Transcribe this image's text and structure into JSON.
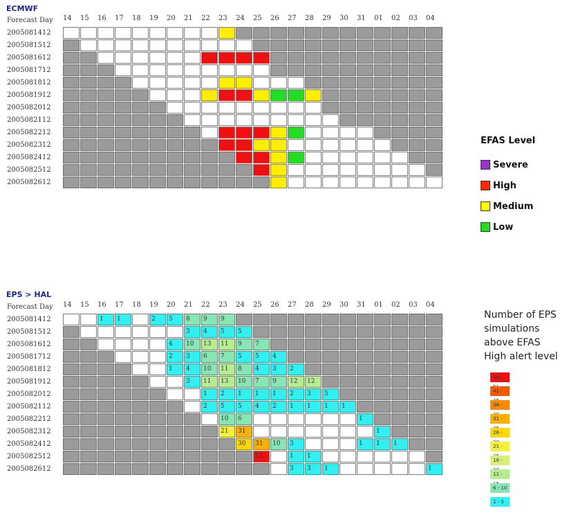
{
  "ecmwf": {
    "title": "ECMWF",
    "header_label": "Forecast Day",
    "days": [
      "14",
      "15",
      "16",
      "17",
      "18",
      "19",
      "20",
      "21",
      "22",
      "23",
      "24",
      "25",
      "26",
      "27",
      "28",
      "29",
      "30",
      "31",
      "01",
      "02",
      "03",
      "04"
    ],
    "rows": [
      {
        "label": "2005081412",
        "cells": [
          "w",
          "w",
          "w",
          "w",
          "w",
          "w",
          "w",
          "w",
          "w",
          "y",
          "g",
          "g",
          "g",
          "g",
          "g",
          "g",
          "g",
          "g",
          "g",
          "g",
          "g",
          "g"
        ]
      },
      {
        "label": "2005081512",
        "cells": [
          "g",
          "w",
          "w",
          "w",
          "w",
          "w",
          "w",
          "w",
          "w",
          "w",
          "w",
          "g",
          "g",
          "g",
          "g",
          "g",
          "g",
          "g",
          "g",
          "g",
          "g",
          "g"
        ]
      },
      {
        "label": "2005081612",
        "cells": [
          "g",
          "g",
          "w",
          "w",
          "w",
          "w",
          "w",
          "w",
          "r",
          "r",
          "r",
          "r",
          "g",
          "g",
          "g",
          "g",
          "g",
          "g",
          "g",
          "g",
          "g",
          "g"
        ]
      },
      {
        "label": "2005081712",
        "cells": [
          "g",
          "g",
          "g",
          "w",
          "w",
          "w",
          "w",
          "w",
          "w",
          "w",
          "w",
          "w",
          "g",
          "g",
          "g",
          "g",
          "g",
          "g",
          "g",
          "g",
          "g",
          "g"
        ]
      },
      {
        "label": "2005081812",
        "cells": [
          "g",
          "g",
          "g",
          "g",
          "w",
          "w",
          "w",
          "w",
          "w",
          "y",
          "y",
          "w",
          "w",
          "w",
          "g",
          "g",
          "g",
          "g",
          "g",
          "g",
          "g",
          "g"
        ]
      },
      {
        "label": "2005081912",
        "cells": [
          "g",
          "g",
          "g",
          "g",
          "g",
          "w",
          "w",
          "w",
          "y",
          "r",
          "r",
          "y",
          "l",
          "l",
          "y",
          "g",
          "g",
          "g",
          "g",
          "g",
          "g",
          "g"
        ]
      },
      {
        "label": "2005082012",
        "cells": [
          "g",
          "g",
          "g",
          "g",
          "g",
          "g",
          "w",
          "w",
          "w",
          "w",
          "w",
          "w",
          "w",
          "w",
          "w",
          "g",
          "g",
          "g",
          "g",
          "g",
          "g",
          "g"
        ]
      },
      {
        "label": "2005082112",
        "cells": [
          "g",
          "g",
          "g",
          "g",
          "g",
          "g",
          "g",
          "w",
          "w",
          "w",
          "w",
          "w",
          "w",
          "w",
          "w",
          "w",
          "g",
          "g",
          "g",
          "g",
          "g",
          "g"
        ]
      },
      {
        "label": "2005082212",
        "cells": [
          "g",
          "g",
          "g",
          "g",
          "g",
          "g",
          "g",
          "g",
          "w",
          "r",
          "r",
          "r",
          "y",
          "l",
          "w",
          "w",
          "w",
          "w",
          "g",
          "g",
          "g",
          "g"
        ]
      },
      {
        "label": "2005082312",
        "cells": [
          "g",
          "g",
          "g",
          "g",
          "g",
          "g",
          "g",
          "g",
          "g",
          "r",
          "r",
          "y",
          "y",
          "w",
          "w",
          "w",
          "w",
          "w",
          "w",
          "g",
          "g",
          "g"
        ]
      },
      {
        "label": "2005082412",
        "cells": [
          "g",
          "g",
          "g",
          "g",
          "g",
          "g",
          "g",
          "g",
          "g",
          "g",
          "r",
          "r",
          "y",
          "l",
          "w",
          "w",
          "w",
          "w",
          "w",
          "w",
          "g",
          "g"
        ]
      },
      {
        "label": "2005082512",
        "cells": [
          "g",
          "g",
          "g",
          "g",
          "g",
          "g",
          "g",
          "g",
          "g",
          "g",
          "g",
          "r",
          "y",
          "w",
          "w",
          "w",
          "w",
          "w",
          "w",
          "w",
          "w",
          "g"
        ]
      },
      {
        "label": "2005082612",
        "cells": [
          "g",
          "g",
          "g",
          "g",
          "g",
          "g",
          "g",
          "g",
          "g",
          "g",
          "g",
          "g",
          "y",
          "w",
          "w",
          "w",
          "w",
          "w",
          "w",
          "w",
          "w",
          "w"
        ]
      }
    ],
    "legend": {
      "title": "EFAS Level",
      "items": [
        {
          "label": "Severe",
          "color": "#9933cc"
        },
        {
          "label": "High",
          "color": "#ff2a00"
        },
        {
          "label": "Medium",
          "color": "#ffff00"
        },
        {
          "label": "Low",
          "color": "#22dd22"
        }
      ]
    },
    "colors": {
      "w": "#ffffff",
      "g": "#9b9b9b",
      "r": "#ee1111",
      "y": "#ffee00",
      "l": "#22dd22"
    }
  },
  "eps": {
    "title": "EPS > HAL",
    "header_label": "Forecast Day",
    "days": [
      "14",
      "15",
      "16",
      "17",
      "18",
      "19",
      "20",
      "21",
      "22",
      "23",
      "24",
      "25",
      "26",
      "27",
      "28",
      "29",
      "30",
      "31",
      "01",
      "02",
      "03",
      "04"
    ],
    "rows": [
      {
        "label": "2005081412",
        "cells": [
          "",
          "",
          "1",
          "1",
          "",
          "2",
          "5",
          "8",
          "9",
          "9",
          "",
          "",
          "",
          "",
          "",
          "",
          "",
          "",
          "",
          "",
          "",
          ""
        ]
      },
      {
        "label": "2005081512",
        "cells": [
          "",
          "",
          "",
          "",
          "",
          "",
          "",
          "3",
          "4",
          "5",
          "5",
          "",
          "",
          "",
          "",
          "",
          "",
          "",
          "",
          "",
          "",
          ""
        ]
      },
      {
        "label": "2005081612",
        "cells": [
          "",
          "",
          "",
          "",
          "",
          "",
          "4",
          "10",
          "13",
          "11",
          "9",
          "7",
          "",
          "",
          "",
          "",
          "",
          "",
          "",
          "",
          "",
          ""
        ]
      },
      {
        "label": "2005081712",
        "cells": [
          "",
          "",
          "",
          "",
          "",
          "",
          "2",
          "3",
          "6",
          "7",
          "5",
          "5",
          "4",
          "",
          "",
          "",
          "",
          "",
          "",
          "",
          "",
          ""
        ]
      },
      {
        "label": "2005081812",
        "cells": [
          "",
          "",
          "",
          "",
          "",
          "",
          "1",
          "4",
          "10",
          "11",
          "8",
          "4",
          "3",
          "2",
          "",
          "",
          "",
          "",
          "",
          "",
          "",
          ""
        ]
      },
      {
        "label": "2005081912",
        "cells": [
          "",
          "",
          "",
          "",
          "",
          "",
          "",
          "3",
          "11",
          "13",
          "10",
          "7",
          "9",
          "12",
          "12",
          "",
          "",
          "",
          "",
          "",
          "",
          ""
        ]
      },
      {
        "label": "2005082012",
        "cells": [
          "",
          "",
          "",
          "",
          "",
          "",
          "",
          "",
          "1",
          "2",
          "1",
          "1",
          "1",
          "2",
          "3",
          "5",
          "",
          "",
          "",
          "",
          "",
          ""
        ]
      },
      {
        "label": "2005082112",
        "cells": [
          "",
          "",
          "",
          "",
          "",
          "",
          "",
          "",
          "2",
          "5",
          "5",
          "4",
          "2",
          "1",
          "1",
          "1",
          "1",
          "",
          "",
          "",
          "",
          ""
        ]
      },
      {
        "label": "2005082212",
        "cells": [
          "",
          "",
          "",
          "",
          "",
          "",
          "",
          "",
          "",
          "10",
          "6",
          "",
          "",
          "",
          "",
          "",
          "",
          "1",
          "",
          "",
          "",
          ""
        ]
      },
      {
        "label": "2005082312",
        "cells": [
          "",
          "",
          "",
          "",
          "",
          "",
          "",
          "",
          "",
          "21",
          "31",
          "",
          "",
          "",
          "",
          "",
          "",
          "",
          "1",
          "",
          "",
          ""
        ]
      },
      {
        "label": "2005082412",
        "cells": [
          "",
          "",
          "",
          "",
          "",
          "",
          "",
          "",
          "",
          "",
          "30",
          "31",
          "10",
          "3",
          "",
          "",
          "",
          "1",
          "1",
          "1",
          "",
          ""
        ]
      },
      {
        "label": "2005082512",
        "cells": [
          "",
          "",
          "",
          "",
          "",
          "",
          "",
          "",
          "",
          "",
          "",
          "51",
          "",
          "1",
          "1",
          "",
          "",
          "",
          "",
          "",
          "",
          ""
        ]
      },
      {
        "label": "2005082612",
        "cells": [
          "",
          "",
          "",
          "",
          "",
          "",
          "",
          "",
          "",
          "",
          "",
          "",
          "",
          "3",
          "3",
          "1",
          "",
          "",
          "",
          "",
          "",
          "1"
        ]
      }
    ],
    "states": [
      [
        "w",
        "w",
        "c",
        "c",
        "w",
        "c",
        "c",
        "c",
        "c",
        "c",
        "g",
        "g",
        "g",
        "g",
        "g",
        "g",
        "g",
        "g",
        "g",
        "g",
        "g",
        "g"
      ],
      [
        "g",
        "w",
        "w",
        "w",
        "w",
        "w",
        "w",
        "c",
        "c",
        "c",
        "c",
        "g",
        "g",
        "g",
        "g",
        "g",
        "g",
        "g",
        "g",
        "g",
        "g",
        "g"
      ],
      [
        "g",
        "g",
        "w",
        "w",
        "w",
        "w",
        "c",
        "c",
        "c",
        "c",
        "c",
        "c",
        "g",
        "g",
        "g",
        "g",
        "g",
        "g",
        "g",
        "g",
        "g",
        "g"
      ],
      [
        "g",
        "g",
        "g",
        "w",
        "w",
        "w",
        "c",
        "c",
        "c",
        "c",
        "c",
        "c",
        "c",
        "g",
        "g",
        "g",
        "g",
        "g",
        "g",
        "g",
        "g",
        "g"
      ],
      [
        "g",
        "g",
        "g",
        "g",
        "w",
        "w",
        "c",
        "c",
        "c",
        "c",
        "c",
        "c",
        "c",
        "c",
        "g",
        "g",
        "g",
        "g",
        "g",
        "g",
        "g",
        "g"
      ],
      [
        "g",
        "g",
        "g",
        "g",
        "g",
        "w",
        "w",
        "c",
        "c",
        "c",
        "c",
        "c",
        "c",
        "c",
        "c",
        "g",
        "g",
        "g",
        "g",
        "g",
        "g",
        "g"
      ],
      [
        "g",
        "g",
        "g",
        "g",
        "g",
        "g",
        "w",
        "w",
        "c",
        "c",
        "c",
        "c",
        "c",
        "c",
        "c",
        "c",
        "g",
        "g",
        "g",
        "g",
        "g",
        "g"
      ],
      [
        "g",
        "g",
        "g",
        "g",
        "g",
        "g",
        "g",
        "w",
        "c",
        "c",
        "c",
        "c",
        "c",
        "c",
        "c",
        "c",
        "c",
        "g",
        "g",
        "g",
        "g",
        "g"
      ],
      [
        "g",
        "g",
        "g",
        "g",
        "g",
        "g",
        "g",
        "g",
        "w",
        "c",
        "c",
        "w",
        "w",
        "w",
        "w",
        "w",
        "w",
        "c",
        "g",
        "g",
        "g",
        "g"
      ],
      [
        "g",
        "g",
        "g",
        "g",
        "g",
        "g",
        "g",
        "g",
        "g",
        "c",
        "c",
        "w",
        "w",
        "w",
        "w",
        "w",
        "w",
        "w",
        "c",
        "g",
        "g",
        "g"
      ],
      [
        "g",
        "g",
        "g",
        "g",
        "g",
        "g",
        "g",
        "g",
        "g",
        "g",
        "c",
        "c",
        "c",
        "c",
        "w",
        "w",
        "w",
        "c",
        "c",
        "c",
        "g",
        "g"
      ],
      [
        "g",
        "g",
        "g",
        "g",
        "g",
        "g",
        "g",
        "g",
        "g",
        "g",
        "g",
        "c",
        "w",
        "c",
        "c",
        "w",
        "w",
        "w",
        "w",
        "w",
        "w",
        "g"
      ],
      [
        "g",
        "g",
        "g",
        "g",
        "g",
        "g",
        "g",
        "g",
        "g",
        "g",
        "g",
        "g",
        "w",
        "c",
        "c",
        "c",
        "w",
        "w",
        "w",
        "w",
        "w",
        "c"
      ]
    ],
    "legend": {
      "title_lines": [
        "Number of EPS",
        "simulations",
        "above EFAS",
        "High alert level"
      ],
      "items": [
        {
          "label": "46 - 51",
          "color": "#ee1111"
        },
        {
          "label": "41 - 45",
          "color": "#f55a00"
        },
        {
          "label": "36 - 40",
          "color": "#f78a00"
        },
        {
          "label": "31 - 35",
          "color": "#f9b000"
        },
        {
          "label": "26 - 30",
          "color": "#fbd800"
        },
        {
          "label": "21 - 25",
          "color": "#f3f03a"
        },
        {
          "label": "16 - 20",
          "color": "#d6f078"
        },
        {
          "label": "11 - 15",
          "color": "#b6ec92"
        },
        {
          "label": "6 - 10",
          "color": "#86e6b4"
        },
        {
          "label": "1 - 5",
          "color": "#33f0f0"
        }
      ]
    }
  }
}
